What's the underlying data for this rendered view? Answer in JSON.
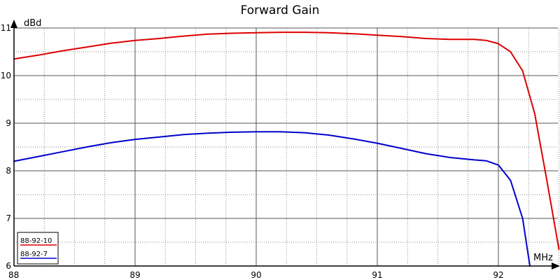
{
  "chart_data": {
    "type": "line",
    "title": "Forward Gain",
    "ylabel": "dBd",
    "xlabel": "MHz",
    "xlim": [
      88,
      92.5
    ],
    "ylim": [
      6,
      11
    ],
    "x_major_ticks": [
      "88",
      "89",
      "90",
      "91",
      "92"
    ],
    "y_major_ticks": [
      "6",
      "7",
      "8",
      "9",
      "10",
      "11"
    ],
    "grid": true,
    "legend_position": "bottom-left",
    "series": [
      {
        "name": "88-92-10",
        "color": "#dd0000",
        "points": [
          [
            88.0,
            10.35
          ],
          [
            88.2,
            10.43
          ],
          [
            88.4,
            10.52
          ],
          [
            88.6,
            10.6
          ],
          [
            88.8,
            10.68
          ],
          [
            89.0,
            10.74
          ],
          [
            89.2,
            10.78
          ],
          [
            89.4,
            10.83
          ],
          [
            89.6,
            10.87
          ],
          [
            89.8,
            10.89
          ],
          [
            90.0,
            10.9
          ],
          [
            90.2,
            10.91
          ],
          [
            90.4,
            10.91
          ],
          [
            90.6,
            10.9
          ],
          [
            90.8,
            10.88
          ],
          [
            91.0,
            10.85
          ],
          [
            91.2,
            10.82
          ],
          [
            91.4,
            10.78
          ],
          [
            91.6,
            10.76
          ],
          [
            91.8,
            10.76
          ],
          [
            91.9,
            10.74
          ],
          [
            92.0,
            10.67
          ],
          [
            92.1,
            10.5
          ],
          [
            92.2,
            10.1
          ],
          [
            92.3,
            9.2
          ],
          [
            92.4,
            7.8
          ],
          [
            92.5,
            6.35
          ]
        ]
      },
      {
        "name": "88-92-7",
        "color": "#0000cc",
        "points": [
          [
            88.0,
            8.2
          ],
          [
            88.2,
            8.3
          ],
          [
            88.4,
            8.4
          ],
          [
            88.6,
            8.5
          ],
          [
            88.8,
            8.59
          ],
          [
            89.0,
            8.66
          ],
          [
            89.2,
            8.71
          ],
          [
            89.4,
            8.76
          ],
          [
            89.6,
            8.79
          ],
          [
            89.8,
            8.81
          ],
          [
            90.0,
            8.82
          ],
          [
            90.2,
            8.82
          ],
          [
            90.4,
            8.8
          ],
          [
            90.6,
            8.75
          ],
          [
            90.8,
            8.67
          ],
          [
            91.0,
            8.58
          ],
          [
            91.2,
            8.47
          ],
          [
            91.4,
            8.36
          ],
          [
            91.6,
            8.28
          ],
          [
            91.8,
            8.23
          ],
          [
            91.9,
            8.21
          ],
          [
            92.0,
            8.12
          ],
          [
            92.1,
            7.8
          ],
          [
            92.2,
            7.0
          ],
          [
            92.26,
            6.0
          ]
        ]
      }
    ]
  }
}
